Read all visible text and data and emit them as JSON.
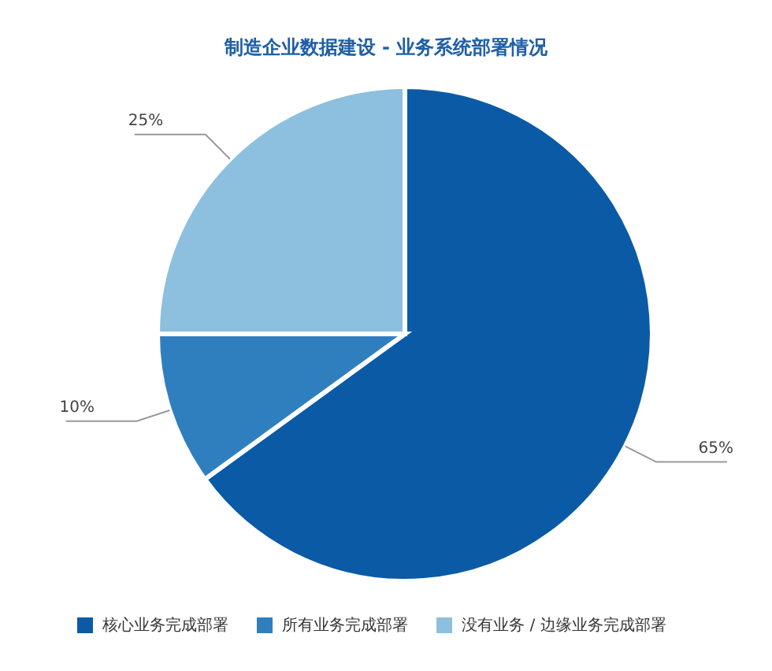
{
  "chart_data": {
    "type": "pie",
    "title": "制造企业数据建设 - 业务系统部署情况",
    "categories": [
      "核心业务完成部署",
      "所有业务完成部署",
      "没有业务 / 边缘业务完成部署"
    ],
    "values": [
      65,
      10,
      25
    ],
    "colors": [
      "#0b5aa6",
      "#2f7fbf",
      "#8cc0de"
    ],
    "value_labels": [
      "65%",
      "10%",
      "25%"
    ],
    "legend": "bottom"
  }
}
